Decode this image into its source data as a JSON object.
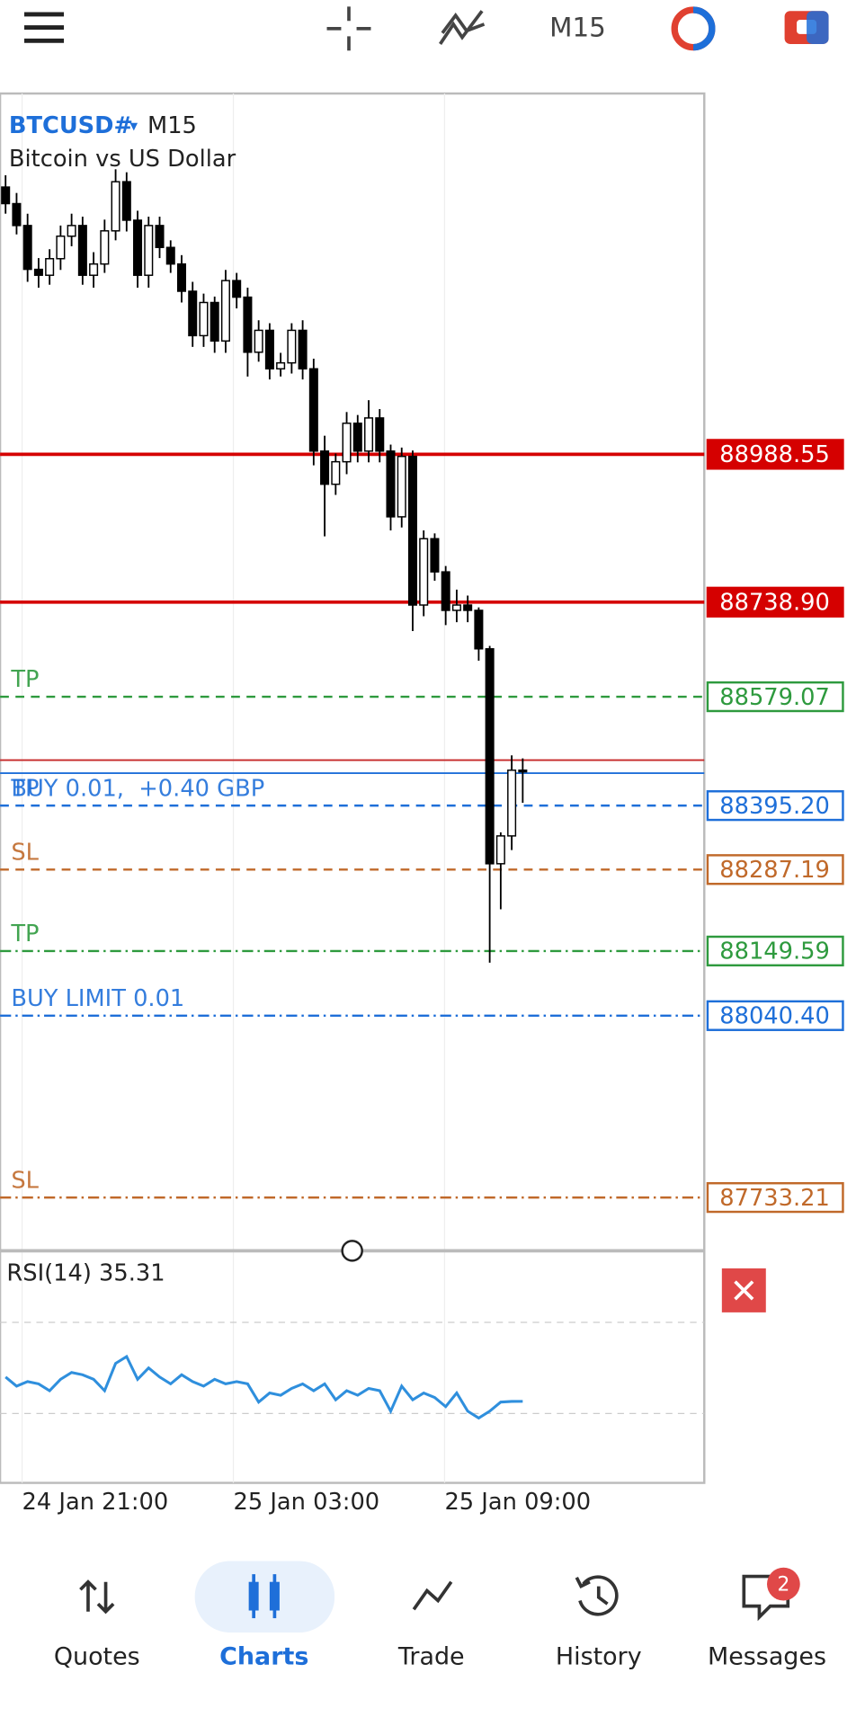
{
  "toolbar": {
    "timeframe": "M15"
  },
  "chart_data": {
    "type": "candlestick",
    "symbol": "BTCUSD#",
    "timeframe": "M15",
    "description": "Bitcoin vs US Dollar",
    "ylim": [
      87647,
      89598
    ],
    "open": [
      89440,
      89412,
      89375,
      89301,
      89291,
      89319,
      89357,
      89375,
      89291,
      89310,
      89366,
      89449,
      89384,
      89291,
      89375,
      89338,
      89310,
      89264,
      89189,
      89245,
      89180,
      89282,
      89254,
      89161,
      89198,
      89133,
      89143,
      89198,
      89133,
      88994,
      88938,
      88976,
      89041,
      88994,
      89050,
      88994,
      88883,
      88985,
      88734,
      88846,
      88790,
      88725,
      88734,
      88725,
      88660,
      88297,
      88344,
      88455
    ],
    "high": [
      89460,
      89430,
      89395,
      89320,
      89335,
      89375,
      89395,
      89390,
      89330,
      89385,
      89470,
      89465,
      89400,
      89390,
      89390,
      89350,
      89325,
      89280,
      89260,
      89255,
      89300,
      89295,
      89270,
      89215,
      89210,
      89160,
      89210,
      89215,
      89150,
      89020,
      88990,
      89060,
      89055,
      89080,
      89065,
      89005,
      89000,
      88995,
      88860,
      88855,
      88800,
      88760,
      88750,
      88730,
      88665,
      88350,
      88480,
      88475
    ],
    "low": [
      89395,
      89360,
      89280,
      89270,
      89275,
      89300,
      89340,
      89275,
      89270,
      89295,
      89350,
      89365,
      89270,
      89270,
      89320,
      89295,
      89245,
      89170,
      89170,
      89160,
      89160,
      89235,
      89120,
      89145,
      89115,
      89120,
      89125,
      89115,
      88970,
      88850,
      88920,
      88955,
      88975,
      88975,
      88975,
      88860,
      88865,
      88690,
      88715,
      88775,
      88700,
      88705,
      88705,
      88640,
      88130,
      88220,
      88320,
      88400
    ],
    "close": [
      89412,
      89375,
      89301,
      89291,
      89319,
      89357,
      89375,
      89291,
      89310,
      89366,
      89449,
      89384,
      89291,
      89375,
      89338,
      89310,
      89264,
      89189,
      89245,
      89180,
      89282,
      89254,
      89161,
      89198,
      89133,
      89143,
      89198,
      89133,
      88994,
      88938,
      88976,
      89041,
      88994,
      89050,
      88994,
      88883,
      88985,
      88734,
      88846,
      88790,
      88725,
      88734,
      88725,
      88660,
      88297,
      88344,
      88455,
      88455
    ],
    "up_color": "#ffffff",
    "down_color": "#000000",
    "levels": [
      {
        "value": 88988.55,
        "label": "88988.55",
        "color": "#d50000",
        "style": "solid",
        "filled": true
      },
      {
        "value": 88738.9,
        "label": "88738.90",
        "color": "#d50000",
        "style": "solid",
        "filled": true
      },
      {
        "value": 88579.07,
        "label": "88579.07",
        "color": "#2e9a3e",
        "style": "dashed",
        "texts": [
          "TP"
        ]
      },
      {
        "value": 88472,
        "color": "#c62828",
        "style": "thin"
      },
      {
        "value": 88450,
        "color": "#1e6fd9",
        "style": "thin"
      },
      {
        "value": 88395.2,
        "label": "88395.20",
        "color": "#1e6fd9",
        "style": "dashed",
        "texts": [
          "TP",
          "BUY 0.01,  +0.40 GBP"
        ]
      },
      {
        "value": 88287.19,
        "label": "88287.19",
        "color": "#c0692a",
        "style": "dashed",
        "texts": [
          "SL"
        ]
      },
      {
        "value": 88149.59,
        "label": "88149.59",
        "color": "#2e9a3e",
        "style": "dashdot",
        "texts": [
          "TP"
        ]
      },
      {
        "value": 88040.4,
        "label": "88040.40",
        "color": "#1e6fd9",
        "style": "dashdot",
        "texts": [
          "BUY LIMIT 0.01"
        ]
      },
      {
        "value": 87733.21,
        "label": "87733.21",
        "color": "#c0692a",
        "style": "dashdot",
        "texts": [
          "SL"
        ]
      }
    ],
    "x_labels": [
      "24 Jan 21:00",
      "25 Jan 03:00",
      "25 Jan 09:00"
    ]
  },
  "indicator": {
    "type": "line",
    "label": "RSI(14) 35.31",
    "color": "#2f8fdd",
    "ylim": [
      0,
      100
    ],
    "levels": [
      30,
      70
    ],
    "values": [
      46,
      42,
      44,
      43,
      40,
      45,
      48,
      47,
      45,
      40,
      52,
      55,
      45,
      50,
      46,
      43,
      47,
      44,
      42,
      45,
      43,
      44,
      43,
      35,
      39,
      38,
      41,
      43,
      40,
      43,
      36,
      40,
      38,
      41,
      40,
      31,
      42,
      36,
      39,
      37,
      33,
      39,
      31,
      28,
      31,
      35,
      35.3,
      35.31
    ]
  },
  "nav": {
    "active": 1,
    "badge": 2,
    "items": [
      {
        "label": "Quotes"
      },
      {
        "label": "Charts"
      },
      {
        "label": "Trade"
      },
      {
        "label": "History"
      },
      {
        "label": "Messages"
      }
    ]
  }
}
